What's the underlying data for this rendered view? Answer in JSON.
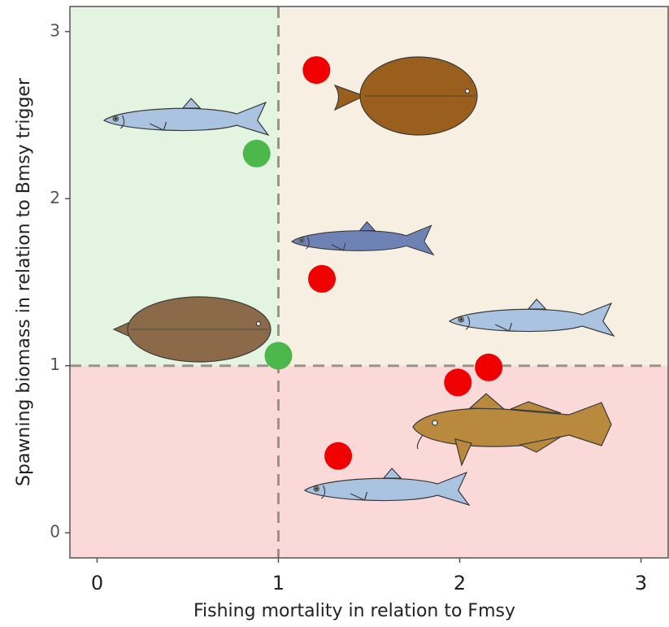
{
  "chart_data": {
    "type": "scatter",
    "x_label": "Fishing mortality in relation to Fmsy",
    "y_label": "Spawning biomass in relation to Bmsy trigger",
    "x": [
      1.21,
      0.88,
      1.24,
      1.0,
      2.16,
      1.99,
      1.33
    ],
    "values": [
      2.77,
      2.27,
      1.52,
      1.06,
      0.99,
      0.9,
      0.46
    ],
    "colors": [
      "#f00000",
      "#4cb84c",
      "#f00000",
      "#4cb84c",
      "#f00000",
      "#f00000",
      "#f00000"
    ],
    "xlim": [
      -0.15,
      3.15
    ],
    "ylim": [
      -0.15,
      3.15
    ],
    "xticks": [
      0,
      1,
      2,
      3
    ],
    "yticks": [
      0,
      1,
      2,
      3
    ],
    "reference_lines": {
      "x": 1,
      "y": 1
    },
    "zone_colors": {
      "good": "#e3f5e1",
      "overfished": "#f7efe2",
      "depleted": "#fbd9d9"
    }
  }
}
